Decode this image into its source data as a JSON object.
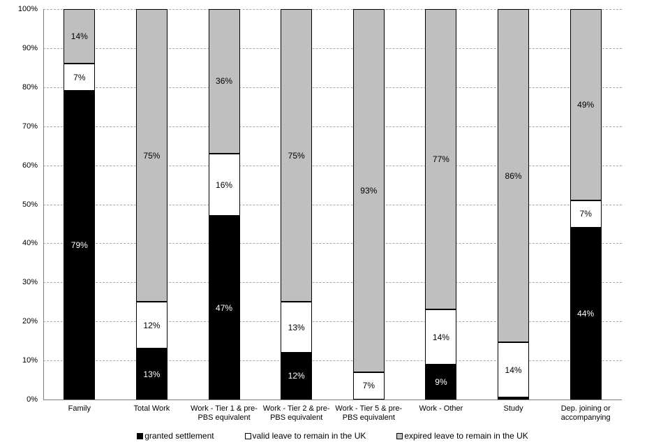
{
  "chart_data": {
    "type": "bar",
    "stacked": true,
    "title": "",
    "xlabel": "",
    "ylabel": "",
    "ylim": [
      0,
      100
    ],
    "yticks": [
      "0%",
      "10%",
      "20%",
      "30%",
      "40%",
      "50%",
      "60%",
      "70%",
      "80%",
      "90%",
      "100%"
    ],
    "grid": "horizontal-dashed",
    "legend_position": "bottom",
    "categories": [
      "Family",
      "Total Work",
      "Work - Tier 1 & pre-PBS equivalent",
      "Work - Tier 2 & pre-PBS equivalent",
      "Work - Tier 5 & pre-PBS equivalent",
      "Work - Other",
      "Study",
      "Dep. joining or accompanying"
    ],
    "category_display_lines": [
      [
        "Family"
      ],
      [
        "Total Work"
      ],
      [
        "Work - Tier 1 & pre-",
        "PBS equivalent"
      ],
      [
        "Work - Tier 2 & pre-",
        "PBS equivalent"
      ],
      [
        "Work - Tier 5 & pre-",
        "PBS equivalent"
      ],
      [
        "Work - Other"
      ],
      [
        "Study"
      ],
      [
        "Dep. joining or",
        "accompanying"
      ]
    ],
    "series": [
      {
        "name": "granted settlement",
        "key": "granted-settlement",
        "color": "#000000",
        "label_color": "#ffffff",
        "values": [
          79,
          13,
          47,
          12,
          0,
          9,
          0.6,
          44
        ],
        "labels": [
          "79%",
          "13%",
          "47%",
          "12%",
          "",
          "9%",
          "",
          "44%"
        ]
      },
      {
        "name": "valid leave to remain in the UK",
        "key": "valid-leave-to-remain",
        "color": "#ffffff",
        "label_color": "#000000",
        "values": [
          7,
          12,
          16,
          13,
          7,
          14,
          14,
          7
        ],
        "labels": [
          "7%",
          "12%",
          "16%",
          "13%",
          "7%",
          "14%",
          "14%",
          "7%"
        ]
      },
      {
        "name": "expired leave to remain in the UK",
        "key": "expired-leave-to-remain",
        "color": "#bfbfbf",
        "label_color": "#000000",
        "values": [
          14,
          75,
          36,
          75,
          93,
          77,
          86,
          49
        ],
        "labels": [
          "14%",
          "75%",
          "36%",
          "75%",
          "93%",
          "77%",
          "86%",
          "49%"
        ]
      }
    ],
    "colors": {
      "bar_border": "#000000",
      "axis": "#808080",
      "gridline": "#a9a9a9",
      "background": "#ffffff"
    }
  }
}
